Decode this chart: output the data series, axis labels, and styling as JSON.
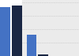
{
  "values": [
    10847,
    11200,
    4800,
    280
  ],
  "bar_colors": [
    "#4472c4",
    "#1a2744",
    "#4472c4",
    "#1a2744"
  ],
  "bar_width": 0.38,
  "ylim": [
    0,
    12500
  ],
  "plot_bgcolor": "#f0f0f0",
  "right_bgcolor": "#ebebeb",
  "left_bgcolor": "#ffffff",
  "positions": [
    0.08,
    0.52,
    1.08,
    1.52
  ],
  "xlim": [
    -0.12,
    2.88
  ]
}
